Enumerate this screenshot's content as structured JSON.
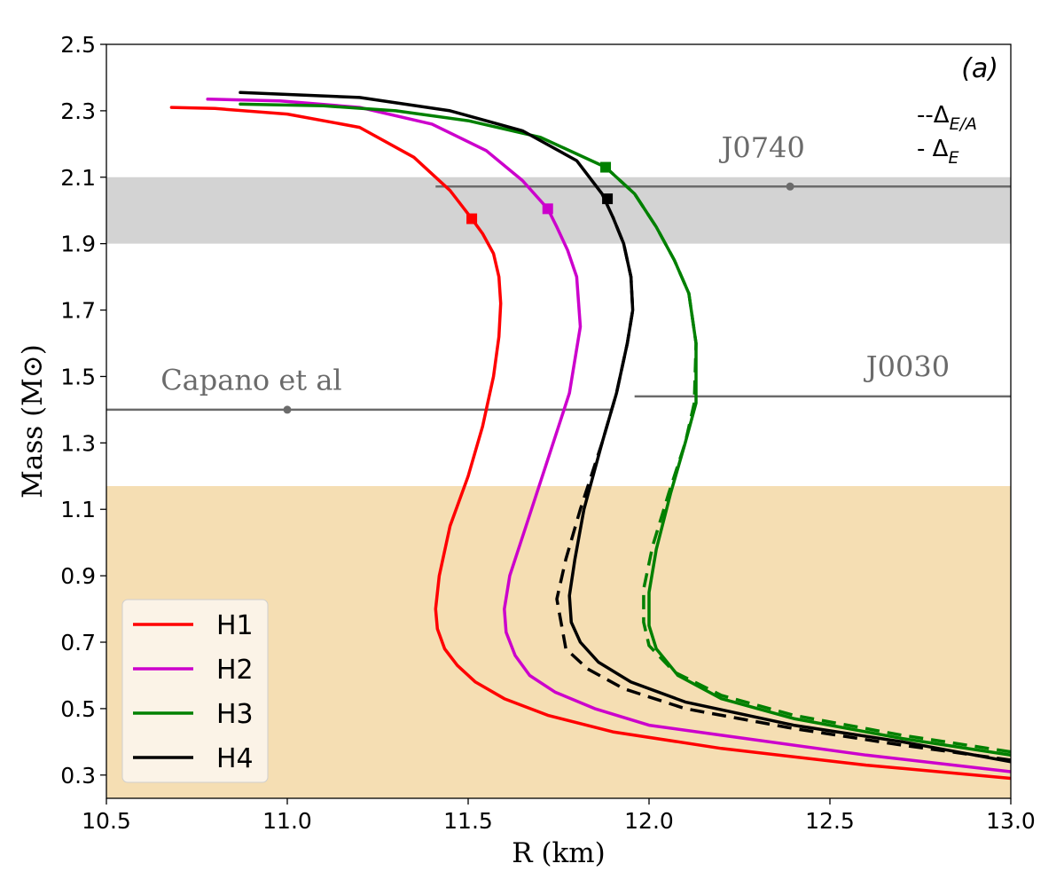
{
  "chart_data": {
    "type": "line",
    "title": "",
    "panel_label": "(a)",
    "xlabel": "R (km)",
    "ylabel": "Mass (M⊙)",
    "xlim": [
      10.5,
      13.0
    ],
    "ylim": [
      0.23,
      2.5
    ],
    "xticks": [
      10.5,
      11.0,
      11.5,
      12.0,
      12.5,
      13.0
    ],
    "xtick_labels": [
      "10.5",
      "11.0",
      "11.5",
      "12.0",
      "12.5",
      "13.0"
    ],
    "yticks": [
      0.3,
      0.5,
      0.7,
      0.9,
      1.1,
      1.3,
      1.5,
      1.7,
      1.9,
      2.1,
      2.3,
      2.5
    ],
    "ytick_labels": [
      "0.3",
      "0.5",
      "0.7",
      "0.9",
      "1.1",
      "1.3",
      "1.5",
      "1.7",
      "1.9",
      "2.1",
      "2.3",
      "2.5"
    ],
    "grid": false,
    "legend_position": "bottom-left",
    "bands": [
      {
        "name": "band-grey",
        "ymin": 1.9,
        "ymax": 2.1,
        "color": "#d3d3d3"
      },
      {
        "name": "band-tan",
        "ymin": 0.23,
        "ymax": 1.17,
        "color": "#f5deb3"
      }
    ],
    "constraints": [
      {
        "name": "J0740",
        "label": "J0740",
        "y": 2.072,
        "xmin": 11.41,
        "xmax": 13.0,
        "point_x": 12.39,
        "label_x": 12.2,
        "label_y": 2.16
      },
      {
        "name": "Capano",
        "label": "Capano et al",
        "y": 1.4,
        "xmin": 10.5,
        "xmax": 11.9,
        "point_x": 11.0,
        "label_x": 10.65,
        "label_y": 1.46
      },
      {
        "name": "J0030",
        "label": "J0030",
        "y": 1.44,
        "xmin": 11.96,
        "xmax": 13.0,
        "point_x": null,
        "label_x": 12.6,
        "label_y": 1.5
      }
    ],
    "constraint_color": "#6b6b6b",
    "delta_legend": {
      "dashed": "--ΔE/A",
      "dashed_prefix": "--Δ",
      "dashed_sub": "E/A",
      "solid": "- ΔE",
      "solid_prefix": "- Δ",
      "solid_sub": "E"
    },
    "series": [
      {
        "name": "H1",
        "color": "#ff0000",
        "x": [
          13.0,
          12.6,
          12.2,
          11.9,
          11.72,
          11.6,
          11.52,
          11.47,
          11.435,
          11.415,
          11.41,
          11.42,
          11.45,
          11.5,
          11.54,
          11.57,
          11.585,
          11.59,
          11.585,
          11.57,
          11.54,
          11.51,
          11.45,
          11.35,
          11.2,
          11.0,
          10.8,
          10.68
        ],
        "y": [
          0.29,
          0.33,
          0.38,
          0.43,
          0.48,
          0.53,
          0.58,
          0.63,
          0.68,
          0.74,
          0.8,
          0.9,
          1.05,
          1.2,
          1.35,
          1.5,
          1.62,
          1.72,
          1.8,
          1.87,
          1.93,
          1.975,
          2.06,
          2.16,
          2.25,
          2.29,
          2.307,
          2.31
        ],
        "marker": {
          "x": 11.51,
          "y": 1.975
        }
      },
      {
        "name": "H2",
        "color": "#cc00cc",
        "x": [
          13.0,
          12.6,
          12.2,
          12.0,
          11.85,
          11.74,
          11.67,
          11.63,
          11.605,
          11.6,
          11.615,
          11.66,
          11.72,
          11.78,
          11.81,
          11.8,
          11.775,
          11.745,
          11.72,
          11.65,
          11.55,
          11.4,
          11.2,
          10.98,
          10.78
        ],
        "y": [
          0.31,
          0.36,
          0.42,
          0.45,
          0.5,
          0.55,
          0.6,
          0.66,
          0.73,
          0.8,
          0.9,
          1.05,
          1.25,
          1.45,
          1.65,
          1.8,
          1.88,
          1.95,
          2.005,
          2.09,
          2.18,
          2.26,
          2.31,
          2.33,
          2.335
        ],
        "marker": {
          "x": 11.72,
          "y": 2.005
        }
      },
      {
        "name": "H3",
        "color": "#008000",
        "x": [
          13.0,
          12.7,
          12.4,
          12.2,
          12.08,
          12.02,
          12.0,
          12.0,
          12.02,
          12.06,
          12.1,
          12.13,
          12.13,
          12.11,
          12.07,
          12.02,
          11.96,
          11.88,
          11.7,
          11.5,
          11.3,
          11.1,
          10.87
        ],
        "y": [
          0.36,
          0.41,
          0.47,
          0.53,
          0.6,
          0.68,
          0.75,
          0.85,
          0.98,
          1.15,
          1.3,
          1.42,
          1.6,
          1.75,
          1.85,
          1.95,
          2.05,
          2.13,
          2.22,
          2.27,
          2.3,
          2.315,
          2.32
        ],
        "marker": {
          "x": 11.88,
          "y": 2.13
        }
      },
      {
        "name": "H3-dashed",
        "color": "#008000",
        "dashed": true,
        "x": [
          13.0,
          12.7,
          12.4,
          12.2,
          12.07,
          12.0,
          11.985,
          11.985,
          12.01,
          12.055,
          12.1,
          12.125,
          12.13,
          12.11,
          12.07,
          12.02,
          11.96,
          11.88
        ],
        "y": [
          0.37,
          0.42,
          0.48,
          0.54,
          0.61,
          0.69,
          0.76,
          0.86,
          0.99,
          1.15,
          1.3,
          1.42,
          1.6,
          1.75,
          1.85,
          1.95,
          2.05,
          2.13
        ]
      },
      {
        "name": "H4",
        "color": "#000000",
        "x": [
          13.0,
          12.7,
          12.4,
          12.1,
          11.95,
          11.86,
          11.81,
          11.785,
          11.78,
          11.795,
          11.82,
          11.87,
          11.91,
          11.94,
          11.955,
          11.95,
          11.93,
          11.9,
          11.87,
          11.8,
          11.65,
          11.45,
          11.2,
          10.87
        ],
        "y": [
          0.34,
          0.4,
          0.45,
          0.52,
          0.58,
          0.64,
          0.7,
          0.76,
          0.84,
          0.95,
          1.1,
          1.3,
          1.45,
          1.6,
          1.7,
          1.8,
          1.9,
          1.98,
          2.05,
          2.15,
          2.24,
          2.3,
          2.34,
          2.355
        ],
        "marker": {
          "x": 11.885,
          "y": 2.035
        }
      },
      {
        "name": "H4-dashed",
        "color": "#000000",
        "dashed": true,
        "x": [
          13.0,
          12.7,
          12.4,
          12.1,
          11.93,
          11.83,
          11.77,
          11.745,
          11.77,
          11.81,
          11.87,
          11.91,
          11.94,
          11.955,
          11.95,
          11.93,
          11.9
        ],
        "y": [
          0.345,
          0.39,
          0.44,
          0.5,
          0.56,
          0.62,
          0.68,
          0.83,
          0.95,
          1.1,
          1.3,
          1.45,
          1.6,
          1.7,
          1.8,
          1.9,
          1.98
        ]
      }
    ],
    "legend": [
      {
        "label": "H1",
        "color": "#ff0000"
      },
      {
        "label": "H2",
        "color": "#cc00cc"
      },
      {
        "label": "H3",
        "color": "#008000"
      },
      {
        "label": "H4",
        "color": "#000000"
      }
    ]
  }
}
